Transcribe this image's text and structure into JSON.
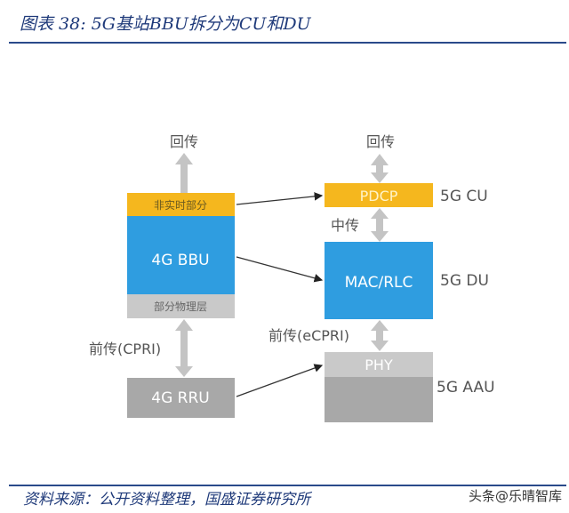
{
  "title": "图表 38: 5G基站BBU拆分为CU和DU",
  "source": "资料来源：公开资料整理，国盛证券研究所",
  "watermark": "头条@乐晴智库",
  "diagram": {
    "left": {
      "backhaul": "回传",
      "non_realtime": "非实时部分",
      "bbu": "4G BBU",
      "partial_phy": "部分物理层",
      "fronthaul": "前传(CPRI)",
      "rru": "4G RRU"
    },
    "right": {
      "backhaul": "回传",
      "pdcp": "PDCP",
      "midhaul": "中传",
      "mac_rlc": "MAC/RLC",
      "fronthaul": "前传(eCPRI)",
      "phy": "PHY",
      "cu_label": "5G CU",
      "du_label": "5G DU",
      "aau_label": "5G AAU"
    },
    "colors": {
      "yellow": "#f5b71e",
      "blue": "#2f9de0",
      "light_gray": "#c9c9c9",
      "dark_gray": "#a8a8a8",
      "arrow_gray": "#c4c4c4"
    }
  }
}
